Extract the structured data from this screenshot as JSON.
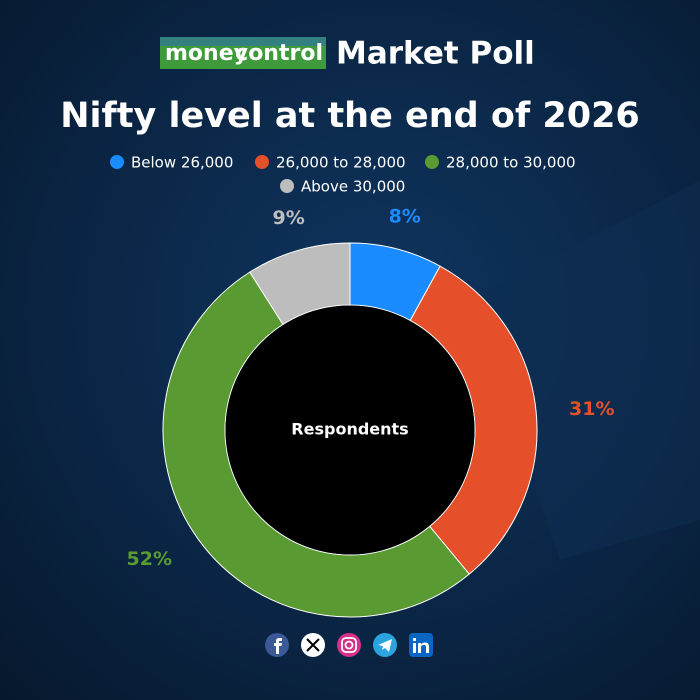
{
  "brand": {
    "logo_left": "money",
    "logo_right": "control",
    "name": "Market Poll"
  },
  "chart_data": {
    "type": "pie",
    "title": "Nifty level at the end of 2026",
    "center_label": "Respondents",
    "categories": [
      "Below 26,000",
      "26,000 to 28,000",
      "28,000 to 30,000",
      "Above 30,000"
    ],
    "values": [
      8,
      31,
      52,
      9
    ],
    "value_labels": [
      "8%",
      "31%",
      "52%",
      "9%"
    ],
    "colors": [
      "#1a8cff",
      "#e5502a",
      "#5a9a32",
      "#bdbdbd"
    ]
  }
}
